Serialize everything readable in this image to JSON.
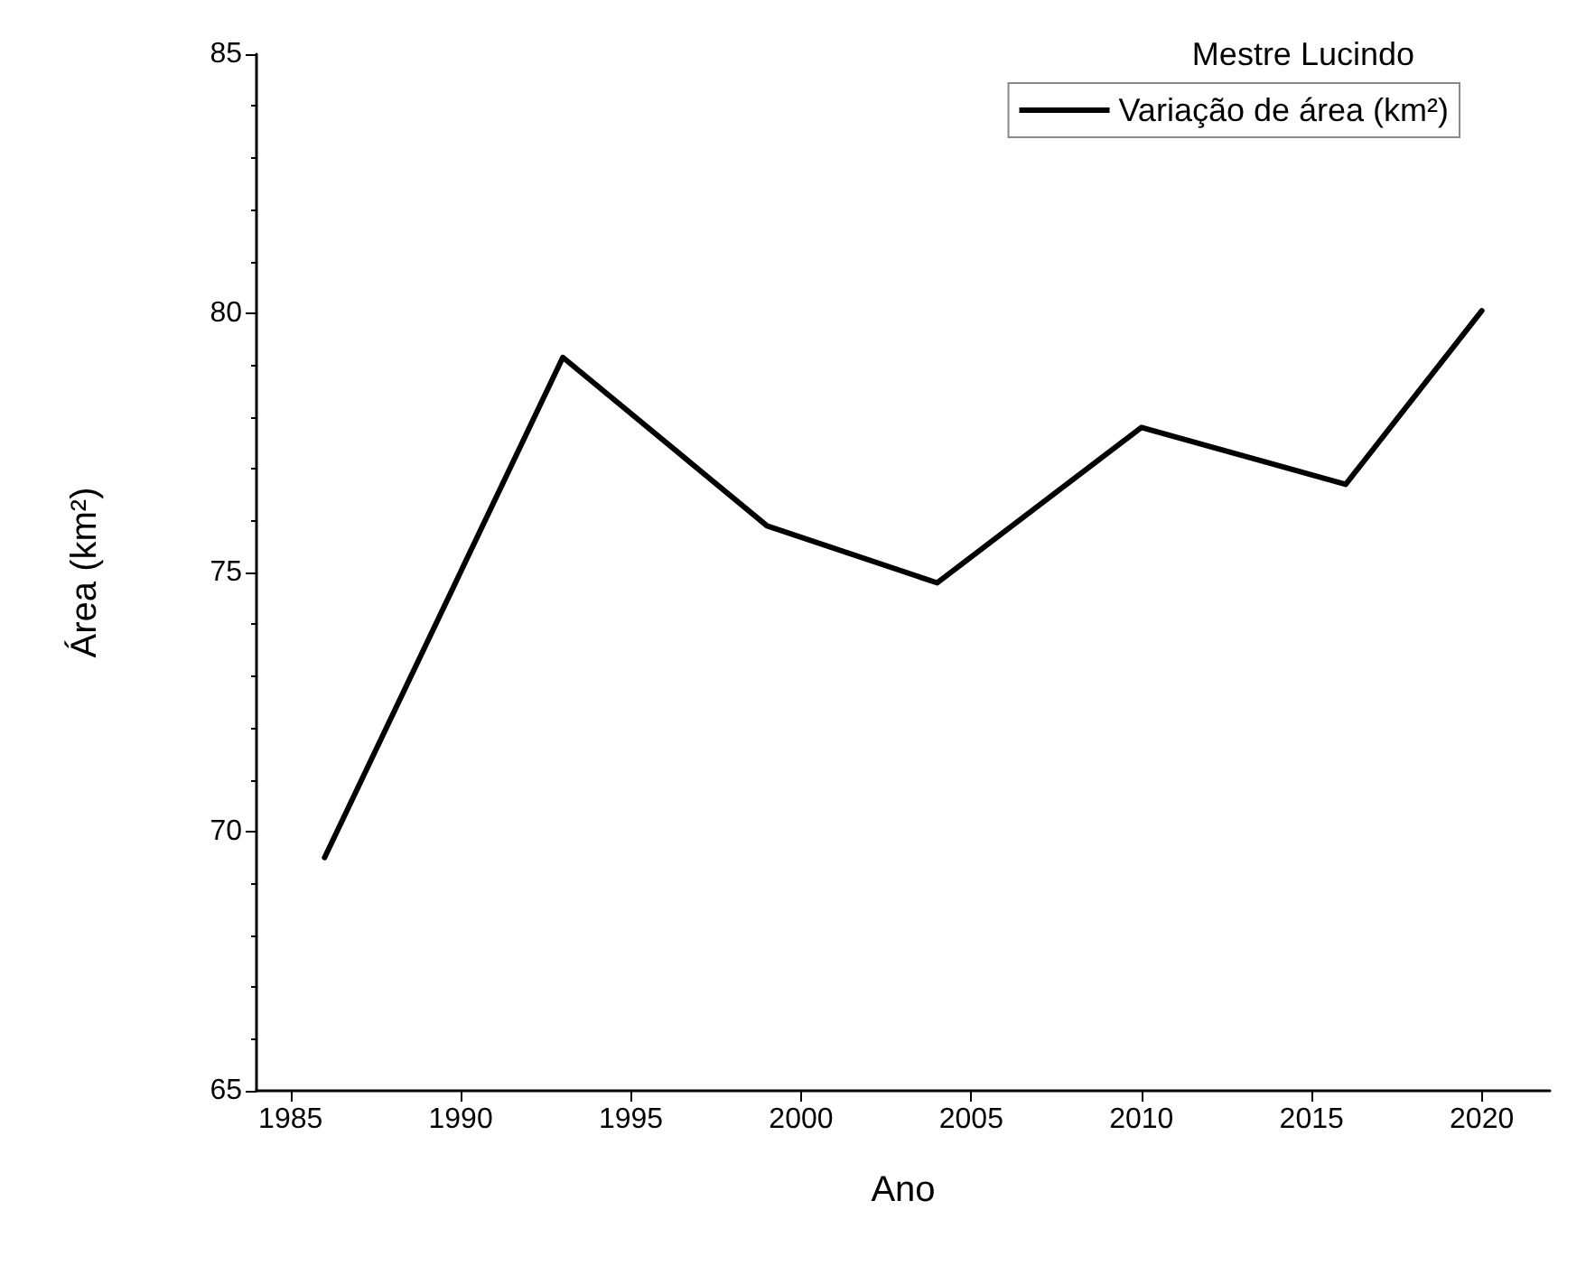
{
  "chart_data": {
    "type": "line",
    "title": "Mestre Lucindo",
    "xlabel": "Ano",
    "ylabel": "Área (km²)",
    "x": [
      1986,
      1993,
      1999,
      2004,
      2010,
      2016,
      2020
    ],
    "series": [
      {
        "name": "Variação de área (km²)",
        "color": "#000000",
        "values": [
          69.5,
          79.15,
          75.9,
          74.8,
          77.8,
          76.7,
          80.05
        ]
      }
    ],
    "xlim": [
      1984,
      2022
    ],
    "xticks": [
      1985,
      1990,
      1995,
      2000,
      2005,
      2010,
      2015,
      2020
    ],
    "ylim": [
      65,
      85
    ],
    "yticks": [
      65,
      70,
      75,
      80,
      85
    ],
    "grid": false,
    "legend": "top right",
    "marker": "none",
    "line_style": "solid"
  }
}
